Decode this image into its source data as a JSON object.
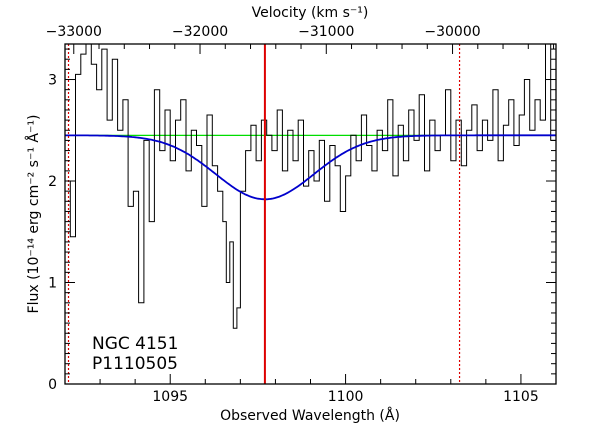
{
  "chart_data": {
    "type": "line",
    "xlabel": "Observed Wavelength (Å)",
    "ylabel": "Flux (10⁻¹⁴ erg cm⁻² s⁻¹ Å⁻¹)",
    "top_axis_label": "Velocity (km s⁻¹)",
    "xlim": [
      1092,
      1106
    ],
    "ylim": [
      0,
      3.35
    ],
    "x_ticks": [
      1095,
      1100,
      1105
    ],
    "y_ticks": [
      0,
      1,
      2,
      3
    ],
    "top_ticks": [
      {
        "value": -33000,
        "wavelength": 1092.25,
        "label": "−33000"
      },
      {
        "value": -32000,
        "wavelength": 1095.85,
        "label": "−32000"
      },
      {
        "value": -31000,
        "wavelength": 1099.45,
        "label": "−31000"
      },
      {
        "value": -30000,
        "wavelength": 1103.05,
        "label": "−30000"
      }
    ],
    "annotations": [
      "NGC 4151",
      "P1110505"
    ],
    "continuum": {
      "color": "#00dd00",
      "y": 2.45
    },
    "model": {
      "color": "#0000cc",
      "continuum": 2.45,
      "center": 1097.7,
      "depth": 0.63,
      "sigma": 1.4
    },
    "vertical_lines": [
      {
        "x": 1097.7,
        "color": "#dd0000",
        "style": "solid"
      },
      {
        "x": 1092.1,
        "color": "#dd0000",
        "style": "dotted"
      },
      {
        "x": 1103.25,
        "color": "#dd0000",
        "style": "dotted"
      }
    ],
    "series": [
      {
        "color": "#000000",
        "x": [
          1092.0,
          1092.15,
          1092.3,
          1092.45,
          1092.6,
          1092.75,
          1092.9,
          1093.05,
          1093.2,
          1093.35,
          1093.5,
          1093.65,
          1093.8,
          1093.95,
          1094.1,
          1094.25,
          1094.4,
          1094.55,
          1094.7,
          1094.85,
          1095.0,
          1095.15,
          1095.3,
          1095.45,
          1095.6,
          1095.75,
          1095.9,
          1096.05,
          1096.2,
          1096.35,
          1096.5,
          1096.6,
          1096.7,
          1096.8,
          1096.9,
          1097.0,
          1097.15,
          1097.3,
          1097.45,
          1097.6,
          1097.75,
          1097.9,
          1098.05,
          1098.2,
          1098.35,
          1098.5,
          1098.65,
          1098.8,
          1098.95,
          1099.1,
          1099.25,
          1099.4,
          1099.55,
          1099.7,
          1099.85,
          1100.0,
          1100.15,
          1100.3,
          1100.45,
          1100.6,
          1100.75,
          1100.9,
          1101.05,
          1101.2,
          1101.35,
          1101.5,
          1101.65,
          1101.8,
          1101.95,
          1102.1,
          1102.25,
          1102.4,
          1102.55,
          1102.7,
          1102.85,
          1103.0,
          1103.15,
          1103.3,
          1103.45,
          1103.6,
          1103.75,
          1103.9,
          1104.05,
          1104.2,
          1104.35,
          1104.5,
          1104.65,
          1104.8,
          1104.95,
          1105.1,
          1105.25,
          1105.4,
          1105.55,
          1105.7,
          1105.85
        ],
        "y": [
          2.0,
          1.45,
          3.05,
          3.25,
          3.35,
          3.15,
          2.9,
          3.3,
          2.6,
          3.2,
          2.5,
          2.8,
          1.75,
          1.9,
          0.8,
          2.4,
          1.6,
          2.9,
          2.3,
          2.7,
          2.2,
          2.6,
          2.8,
          2.1,
          2.5,
          2.35,
          1.75,
          2.65,
          2.15,
          1.9,
          1.6,
          1.0,
          1.4,
          0.55,
          0.75,
          1.9,
          2.3,
          2.55,
          2.2,
          2.6,
          2.45,
          2.3,
          2.7,
          2.1,
          2.5,
          2.2,
          2.6,
          1.95,
          2.3,
          2.0,
          2.4,
          1.8,
          2.35,
          2.15,
          1.7,
          2.05,
          2.45,
          2.2,
          2.65,
          2.35,
          2.1,
          2.5,
          2.3,
          2.8,
          2.05,
          2.55,
          2.2,
          2.7,
          2.4,
          2.85,
          2.1,
          2.6,
          2.3,
          2.45,
          2.9,
          2.2,
          2.6,
          2.15,
          2.5,
          2.75,
          2.3,
          2.6,
          2.4,
          2.9,
          2.2,
          2.55,
          2.8,
          2.35,
          2.65,
          3.0,
          2.5,
          2.8,
          2.6,
          3.35,
          2.4
        ]
      }
    ]
  }
}
